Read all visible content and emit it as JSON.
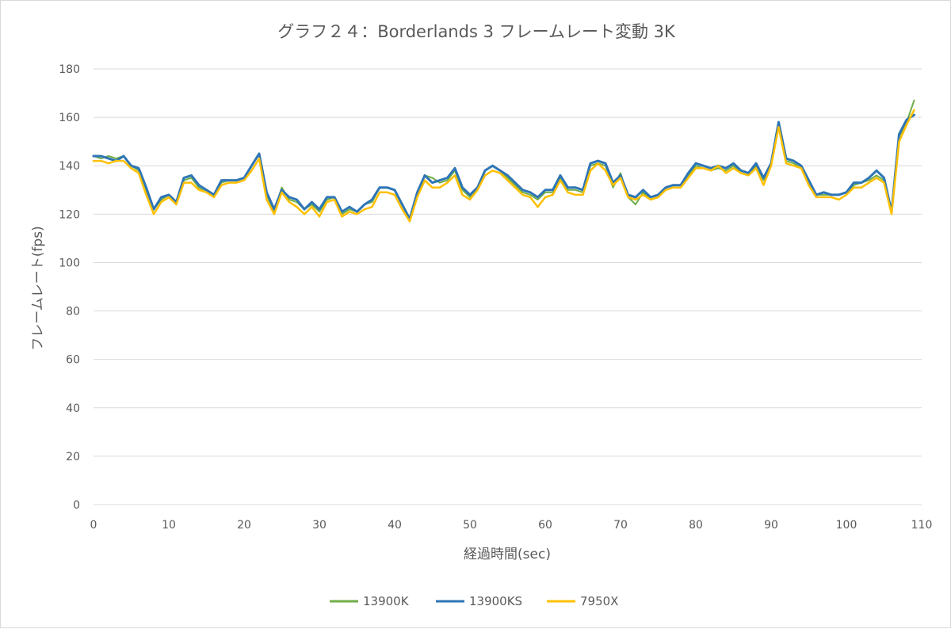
{
  "chart_data": {
    "type": "line",
    "title": "グラフ２４：Borderlands 3 フレームレート変動 3K",
    "xlabel": "経過時間(sec)",
    "ylabel": "フレームレート(fps)",
    "xlim": [
      0,
      110
    ],
    "ylim": [
      0,
      180
    ],
    "xticks": [
      0,
      10,
      20,
      30,
      40,
      50,
      60,
      70,
      80,
      90,
      100,
      110
    ],
    "yticks": [
      0,
      20,
      40,
      60,
      80,
      100,
      120,
      140,
      160,
      180
    ],
    "grid": "horizontal",
    "legend_position": "bottom",
    "x": [
      0,
      1,
      2,
      3,
      4,
      5,
      6,
      7,
      8,
      9,
      10,
      11,
      12,
      13,
      14,
      15,
      16,
      17,
      18,
      19,
      20,
      21,
      22,
      23,
      24,
      25,
      26,
      27,
      28,
      29,
      30,
      31,
      32,
      33,
      34,
      35,
      36,
      37,
      38,
      39,
      40,
      41,
      42,
      43,
      44,
      45,
      46,
      47,
      48,
      49,
      50,
      51,
      52,
      53,
      54,
      55,
      56,
      57,
      58,
      59,
      60,
      61,
      62,
      63,
      64,
      65,
      66,
      67,
      68,
      69,
      70,
      71,
      72,
      73,
      74,
      75,
      76,
      77,
      78,
      79,
      80,
      81,
      82,
      83,
      84,
      85,
      86,
      87,
      88,
      89,
      90,
      91,
      92,
      93,
      94,
      95,
      96,
      97,
      98,
      99,
      100,
      101,
      102,
      103,
      104,
      105,
      106,
      107,
      108,
      109
    ],
    "series": [
      {
        "name": "13900K",
        "color": "#70ad47",
        "values": [
          144,
          143,
          144,
          143,
          144,
          140,
          138,
          130,
          122,
          126,
          128,
          125,
          134,
          135,
          131,
          129,
          128,
          133,
          134,
          134,
          135,
          140,
          145,
          128,
          121,
          131,
          126,
          125,
          122,
          124,
          121,
          126,
          127,
          120,
          122,
          121,
          124,
          125,
          131,
          131,
          130,
          124,
          118,
          128,
          136,
          135,
          133,
          134,
          138,
          130,
          127,
          131,
          138,
          140,
          138,
          135,
          132,
          129,
          128,
          126,
          129,
          129,
          135,
          130,
          130,
          129,
          140,
          141,
          140,
          131,
          137,
          127,
          124,
          129,
          126,
          127,
          130,
          131,
          131,
          136,
          140,
          139,
          138,
          139,
          138,
          140,
          137,
          136,
          140,
          134,
          141,
          157,
          142,
          141,
          139,
          133,
          128,
          128,
          128,
          128,
          129,
          132,
          133,
          134,
          136,
          134,
          121,
          152,
          158,
          167
        ],
        "line_width": 2
      },
      {
        "name": "13900KS",
        "color": "#2e75b6",
        "values": [
          144,
          144,
          143,
          142,
          144,
          140,
          139,
          131,
          122,
          127,
          128,
          125,
          135,
          136,
          132,
          130,
          128,
          134,
          134,
          134,
          135,
          140,
          145,
          129,
          122,
          130,
          127,
          126,
          122,
          125,
          122,
          127,
          127,
          121,
          123,
          121,
          124,
          126,
          131,
          131,
          130,
          124,
          118,
          129,
          136,
          133,
          134,
          135,
          139,
          131,
          128,
          131,
          138,
          140,
          138,
          136,
          133,
          130,
          129,
          127,
          130,
          130,
          136,
          131,
          131,
          130,
          141,
          142,
          141,
          133,
          136,
          128,
          127,
          130,
          127,
          128,
          131,
          132,
          132,
          137,
          141,
          140,
          139,
          140,
          139,
          141,
          138,
          137,
          141,
          135,
          141,
          158,
          143,
          142,
          140,
          134,
          128,
          129,
          128,
          128,
          129,
          133,
          133,
          135,
          138,
          135,
          121,
          153,
          159,
          161
        ],
        "line_width": 3
      },
      {
        "name": "7950X",
        "color": "#ffc000",
        "values": [
          142,
          142,
          141,
          142,
          142,
          139,
          137,
          128,
          120,
          125,
          127,
          124,
          133,
          133,
          130,
          129,
          127,
          132,
          133,
          133,
          134,
          138,
          143,
          126,
          120,
          129,
          125,
          123,
          120,
          123,
          119,
          125,
          126,
          119,
          121,
          120,
          122,
          123,
          129,
          129,
          128,
          122,
          117,
          127,
          134,
          131,
          131,
          133,
          136,
          128,
          126,
          130,
          136,
          138,
          137,
          134,
          131,
          128,
          127,
          123,
          127,
          128,
          134,
          129,
          128,
          128,
          138,
          141,
          138,
          132,
          135,
          127,
          126,
          128,
          126,
          127,
          130,
          131,
          131,
          135,
          139,
          139,
          138,
          140,
          137,
          139,
          137,
          136,
          139,
          132,
          140,
          156,
          141,
          140,
          139,
          132,
          127,
          127,
          127,
          126,
          128,
          131,
          131,
          133,
          135,
          133,
          120,
          150,
          157,
          163
        ],
        "line_width": 2.5
      }
    ]
  }
}
